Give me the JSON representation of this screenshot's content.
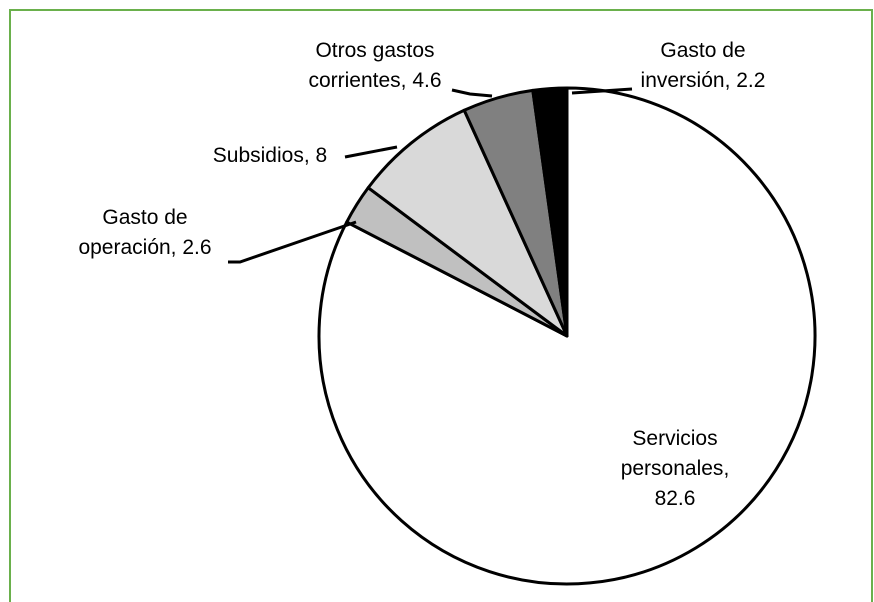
{
  "chart_data": {
    "type": "pie",
    "categories": [
      "Servicios personales",
      "Gasto de operación",
      "Subsidios",
      "Otros gastos corrientes",
      "Gasto de inversión"
    ],
    "values": [
      82.6,
      2.6,
      8,
      4.6,
      2.2
    ],
    "colors": [
      "#ffffff",
      "#c0c0c0",
      "#d9d9d9",
      "#808080",
      "#000000"
    ]
  }
}
